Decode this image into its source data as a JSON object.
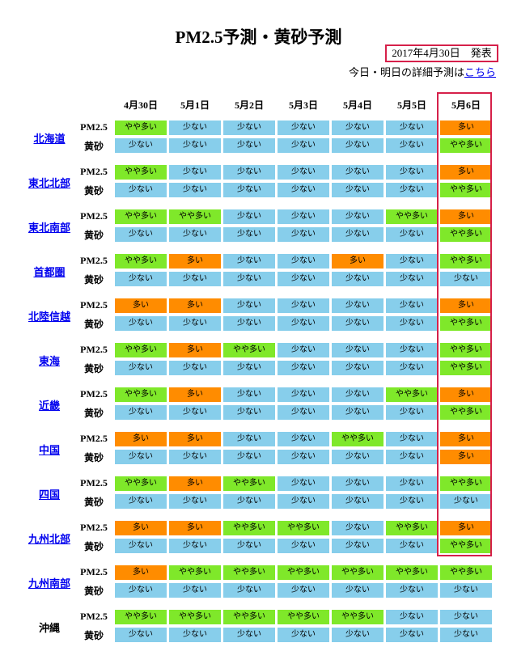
{
  "title": "PM2.5予測・黄砂予測",
  "issued": "2017年4月30日　発表",
  "detail_prefix": "今日・明日の詳細予測は",
  "detail_link": "こちら",
  "dates": [
    "4月30日",
    "5月1日",
    "5月2日",
    "5月3日",
    "5月4日",
    "5月5日",
    "5月6日"
  ],
  "row_labels": {
    "pm": "PM2.5",
    "dust": "黄砂"
  },
  "legend_text": {
    "few": "少ない",
    "some": "やや多い",
    "many": "多い"
  },
  "colors": {
    "few": "#87ceeb",
    "some": "#7fe82a",
    "many": "#ff8c00",
    "highlight": "#d6204a",
    "link": "#0000ee"
  },
  "regions": [
    {
      "name": "北海道",
      "link": true,
      "pm": [
        "やや多い",
        "少ない",
        "少ない",
        "少ない",
        "少ない",
        "少ない",
        "多い"
      ],
      "dust": [
        "少ない",
        "少ない",
        "少ない",
        "少ない",
        "少ない",
        "少ない",
        "やや多い"
      ]
    },
    {
      "name": "東北北部",
      "link": true,
      "pm": [
        "やや多い",
        "少ない",
        "少ない",
        "少ない",
        "少ない",
        "少ない",
        "多い"
      ],
      "dust": [
        "少ない",
        "少ない",
        "少ない",
        "少ない",
        "少ない",
        "少ない",
        "やや多い"
      ]
    },
    {
      "name": "東北南部",
      "link": true,
      "pm": [
        "やや多い",
        "やや多い",
        "少ない",
        "少ない",
        "少ない",
        "やや多い",
        "多い"
      ],
      "dust": [
        "少ない",
        "少ない",
        "少ない",
        "少ない",
        "少ない",
        "少ない",
        "やや多い"
      ]
    },
    {
      "name": "首都圏",
      "link": true,
      "pm": [
        "やや多い",
        "多い",
        "少ない",
        "少ない",
        "多い",
        "少ない",
        "やや多い"
      ],
      "dust": [
        "少ない",
        "少ない",
        "少ない",
        "少ない",
        "少ない",
        "少ない",
        "少ない"
      ]
    },
    {
      "name": "北陸信越",
      "link": true,
      "pm": [
        "多い",
        "多い",
        "少ない",
        "少ない",
        "少ない",
        "少ない",
        "多い"
      ],
      "dust": [
        "少ない",
        "少ない",
        "少ない",
        "少ない",
        "少ない",
        "少ない",
        "やや多い"
      ]
    },
    {
      "name": "東海",
      "link": true,
      "pm": [
        "やや多い",
        "多い",
        "やや多い",
        "少ない",
        "少ない",
        "少ない",
        "やや多い"
      ],
      "dust": [
        "少ない",
        "少ない",
        "少ない",
        "少ない",
        "少ない",
        "少ない",
        "やや多い"
      ]
    },
    {
      "name": "近畿",
      "link": true,
      "pm": [
        "やや多い",
        "多い",
        "少ない",
        "少ない",
        "少ない",
        "やや多い",
        "多い"
      ],
      "dust": [
        "少ない",
        "少ない",
        "少ない",
        "少ない",
        "少ない",
        "少ない",
        "やや多い"
      ]
    },
    {
      "name": "中国",
      "link": true,
      "pm": [
        "多い",
        "多い",
        "少ない",
        "少ない",
        "やや多い",
        "少ない",
        "多い"
      ],
      "dust": [
        "少ない",
        "少ない",
        "少ない",
        "少ない",
        "少ない",
        "少ない",
        "多い"
      ]
    },
    {
      "name": "四国",
      "link": true,
      "pm": [
        "やや多い",
        "多い",
        "やや多い",
        "少ない",
        "少ない",
        "少ない",
        "やや多い"
      ],
      "dust": [
        "少ない",
        "少ない",
        "少ない",
        "少ない",
        "少ない",
        "少ない",
        "少ない"
      ]
    },
    {
      "name": "九州北部",
      "link": true,
      "pm": [
        "多い",
        "多い",
        "やや多い",
        "やや多い",
        "少ない",
        "やや多い",
        "多い"
      ],
      "dust": [
        "少ない",
        "少ない",
        "少ない",
        "少ない",
        "少ない",
        "少ない",
        "やや多い"
      ]
    },
    {
      "name": "九州南部",
      "link": true,
      "pm": [
        "多い",
        "やや多い",
        "やや多い",
        "やや多い",
        "やや多い",
        "やや多い",
        "やや多い"
      ],
      "dust": [
        "少ない",
        "少ない",
        "少ない",
        "少ない",
        "少ない",
        "少ない",
        "少ない"
      ]
    },
    {
      "name": "沖縄",
      "link": false,
      "pm": [
        "やや多い",
        "やや多い",
        "やや多い",
        "やや多い",
        "やや多い",
        "少ない",
        "少ない"
      ],
      "dust": [
        "少ない",
        "少ない",
        "少ない",
        "少ない",
        "少ない",
        "少ない",
        "少ない"
      ]
    }
  ]
}
